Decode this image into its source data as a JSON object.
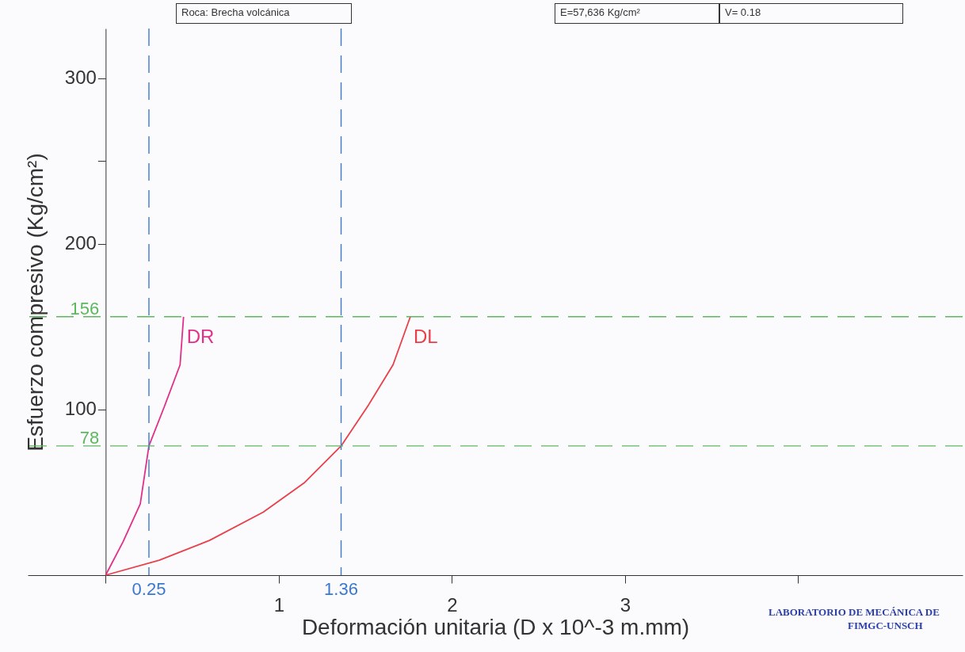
{
  "chart_data": {
    "type": "line",
    "xlabel": "Deformación unitaria (D x 10^-3 m.mm)",
    "ylabel": "Esfuerzo compresivo (Kg/cm²)",
    "series": [
      {
        "name": "DR",
        "color": "#e0308a",
        "x": [
          0,
          0.1,
          0.2,
          0.25,
          0.34,
          0.43,
          0.45
        ],
        "values": [
          0,
          20,
          43,
          78,
          102,
          127,
          156
        ]
      },
      {
        "name": "DL",
        "color": "#e8404a",
        "x": [
          0,
          0.31,
          0.6,
          0.91,
          1.15,
          1.36,
          1.52,
          1.66,
          1.76
        ],
        "values": [
          0,
          9,
          21,
          38,
          56,
          78,
          103,
          127,
          156
        ]
      }
    ],
    "xlim": [
      -0.45,
      4.95
    ],
    "ylim": [
      0,
      330
    ],
    "xticks": [
      {
        "value": 0,
        "label": null
      },
      1,
      2,
      3,
      {
        "value": 4,
        "label": null
      }
    ],
    "yticks": [
      100,
      200,
      {
        "value": 250,
        "label": null
      },
      300
    ],
    "ref_lines": [
      {
        "axis": "x",
        "value": 0.25,
        "label": "0.25",
        "color": "#3a78d0",
        "line_style": "dashed"
      },
      {
        "axis": "x",
        "value": 1.36,
        "label": "1.36",
        "color": "#3a78d0",
        "line_style": "dashed"
      },
      {
        "axis": "y",
        "value": 78,
        "label": "78",
        "color": "#5cb85c",
        "line_style": "dashed"
      },
      {
        "axis": "y",
        "value": 156,
        "label": "156",
        "color": "#5cb85c",
        "line_style": "dashed"
      }
    ],
    "annotations": [
      "Roca: Brecha volcánica",
      "E=57,636 Kg/cm²",
      "V= 0.18",
      "LABORATORIO DE MECÁNICA DE",
      "FIMGC-UNSCH"
    ],
    "grid": false,
    "marker": "none",
    "line_style": "solid"
  }
}
